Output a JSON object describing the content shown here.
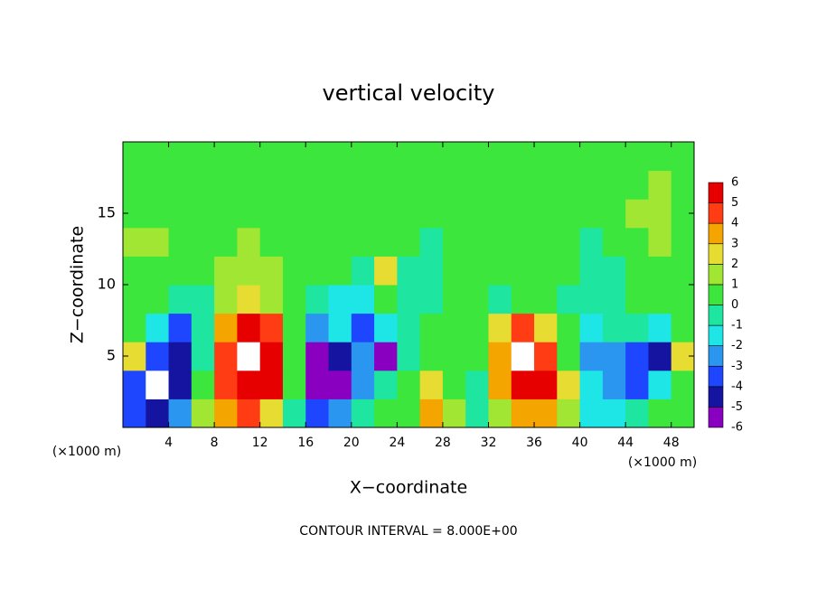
{
  "chart_data": {
    "type": "heatmap",
    "title": "vertical velocity",
    "x_label": "X−coordinate",
    "y_label": "Z−coordinate",
    "x_unit_left": "(×1000 m)",
    "x_unit_right": "(×1000 m)",
    "footer": "CONTOUR INTERVAL = 8.000E+00",
    "xlim": [
      0,
      50
    ],
    "ylim": [
      0,
      20
    ],
    "xticks": [
      4,
      8,
      12,
      16,
      20,
      24,
      28,
      32,
      36,
      40,
      44,
      48
    ],
    "yticks": [
      5,
      10,
      15
    ],
    "x": [
      1,
      3,
      5,
      7,
      9,
      11,
      13,
      15,
      17,
      19,
      21,
      23,
      25,
      27,
      29,
      31,
      33,
      35,
      37,
      39,
      41,
      43,
      45,
      47,
      49
    ],
    "y": [
      1,
      3,
      5,
      7,
      9,
      11,
      13,
      15,
      17,
      19
    ],
    "values": [
      [
        -4,
        -5,
        -3,
        1,
        3,
        4,
        2,
        -1,
        -4,
        -3,
        -1,
        0,
        0.5,
        3,
        1,
        -1,
        1,
        3,
        3,
        1,
        -2,
        -2,
        -1,
        0,
        0
      ],
      [
        -4,
        -7,
        -5,
        0,
        4,
        6,
        5,
        0,
        -6,
        -6,
        -3,
        -1,
        0,
        2,
        0,
        -1,
        3,
        6,
        5,
        2,
        -2,
        -3,
        -4,
        -2,
        0
      ],
      [
        2,
        -4,
        -5,
        -1,
        4,
        7,
        6,
        0,
        -6,
        -5,
        -3,
        -6,
        -1,
        0,
        0,
        0,
        3,
        7,
        4,
        0,
        -3,
        -3,
        -4,
        -5,
        2
      ],
      [
        0,
        -2,
        -4,
        -1,
        3,
        5,
        4,
        0,
        -3,
        -2,
        -4,
        -2,
        -1,
        0,
        0,
        0,
        2,
        4,
        2,
        0,
        -2,
        -1,
        -1,
        -2,
        0
      ],
      [
        0,
        0,
        -1,
        -1,
        1,
        2,
        1,
        0,
        -1,
        -2,
        -2,
        0,
        -1,
        -1,
        0,
        0,
        -1,
        0,
        0,
        -1,
        -1,
        -1,
        0,
        0,
        0
      ],
      [
        0.5,
        0.5,
        0,
        0,
        1,
        1,
        1,
        0,
        0,
        0,
        -0.5,
        2,
        -1,
        -0.5,
        0,
        0,
        0,
        0,
        0,
        0,
        -1,
        -1,
        0.5,
        0,
        0
      ],
      [
        1,
        1,
        0.5,
        0.5,
        0.5,
        1,
        0.5,
        0.5,
        0.5,
        0,
        0,
        0.5,
        0,
        -0.5,
        0,
        0,
        0,
        0,
        0,
        0,
        -0.5,
        0,
        0.5,
        1,
        0.5
      ],
      [
        0.5,
        0.5,
        0.5,
        0.5,
        0.5,
        0.5,
        0.5,
        0.5,
        0.5,
        0.5,
        0,
        0,
        0,
        0,
        0,
        0,
        0,
        0,
        0,
        0,
        0,
        0.5,
        1,
        1,
        0.5
      ],
      [
        0.5,
        0.5,
        0.5,
        0.5,
        0.5,
        0.5,
        0.5,
        0.5,
        0.5,
        0.5,
        0.5,
        0.5,
        0.5,
        0,
        0,
        0,
        0,
        0,
        0,
        0,
        0.5,
        0.5,
        0.5,
        1,
        0.5
      ],
      [
        0.5,
        0.5,
        0.5,
        0.5,
        0.5,
        0.5,
        0.5,
        0.5,
        0.5,
        0.5,
        0.5,
        0.5,
        0.5,
        0.5,
        0.5,
        0.5,
        0.5,
        0.5,
        0.5,
        0.5,
        0.5,
        0.5,
        0.5,
        0.5,
        0.5
      ]
    ],
    "colorbar": {
      "levels": [
        -6,
        -5,
        -4,
        -3,
        -2,
        -1,
        0,
        1,
        2,
        3,
        4,
        5,
        6
      ],
      "colors": [
        "#8a00c0",
        "#1414a0",
        "#1e46ff",
        "#2a96f0",
        "#1ee6e6",
        "#1ee6a0",
        "#3ce63c",
        "#a0e632",
        "#e6dc32",
        "#f5a500",
        "#ff3c14",
        "#e60000"
      ],
      "out_of_range_color": "#ffffff"
    }
  }
}
